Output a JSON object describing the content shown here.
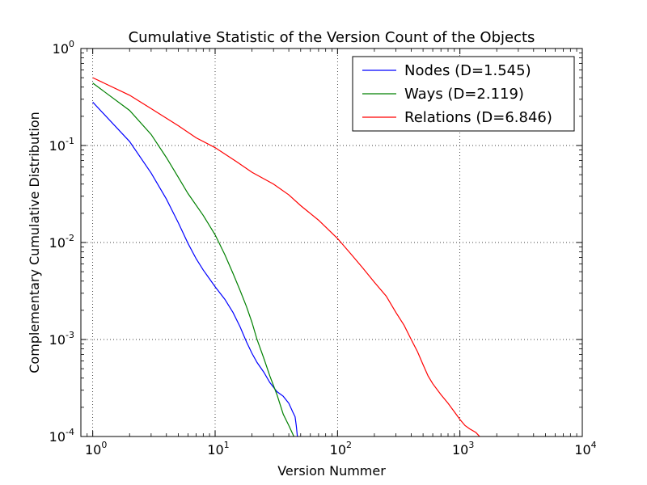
{
  "chart_data": {
    "type": "line",
    "title": "Cumulative Statistic of the Version Count of the Objects",
    "xlabel": "Version Nummer",
    "ylabel": "Complementary Cumulative Distribution",
    "xscale": "log",
    "yscale": "log",
    "xlim": [
      0.8,
      10000
    ],
    "ylim": [
      0.0001,
      1
    ],
    "grid": true,
    "legend_position": "top-right",
    "x_ticks": [
      {
        "value": 1,
        "base": "10",
        "exp": "0"
      },
      {
        "value": 10,
        "base": "10",
        "exp": "1"
      },
      {
        "value": 100,
        "base": "10",
        "exp": "2"
      },
      {
        "value": 1000,
        "base": "10",
        "exp": "3"
      },
      {
        "value": 10000,
        "base": "10",
        "exp": "4"
      }
    ],
    "y_ticks": [
      {
        "value": 1,
        "base": "10",
        "exp": "0"
      },
      {
        "value": 0.1,
        "base": "10",
        "exp": "-1"
      },
      {
        "value": 0.01,
        "base": "10",
        "exp": "-2"
      },
      {
        "value": 0.001,
        "base": "10",
        "exp": "-3"
      },
      {
        "value": 0.0001,
        "base": "10",
        "exp": "-4"
      }
    ],
    "series": [
      {
        "name": "Nodes (D=1.545)",
        "color": "#0000ff",
        "points": [
          [
            1,
            0.28
          ],
          [
            2,
            0.11
          ],
          [
            3,
            0.052
          ],
          [
            4,
            0.028
          ],
          [
            5,
            0.016
          ],
          [
            6,
            0.0098
          ],
          [
            7,
            0.0068
          ],
          [
            8,
            0.0052
          ],
          [
            10,
            0.0035
          ],
          [
            12,
            0.0026
          ],
          [
            14,
            0.0019
          ],
          [
            16,
            0.00135
          ],
          [
            18,
            0.00095
          ],
          [
            20,
            0.00072
          ],
          [
            22,
            0.00058
          ],
          [
            25,
            0.00046
          ],
          [
            28,
            0.00036
          ],
          [
            32,
            0.00029
          ],
          [
            36,
            0.00026
          ],
          [
            40,
            0.00022
          ],
          [
            43,
            0.00018
          ],
          [
            45,
            0.00016
          ],
          [
            46,
            0.00013
          ],
          [
            47,
            0.0001
          ]
        ]
      },
      {
        "name": "Ways (D=2.119)",
        "color": "#008000",
        "points": [
          [
            1,
            0.44
          ],
          [
            2,
            0.23
          ],
          [
            3,
            0.13
          ],
          [
            4,
            0.075
          ],
          [
            5,
            0.047
          ],
          [
            6,
            0.032
          ],
          [
            8,
            0.019
          ],
          [
            10,
            0.012
          ],
          [
            12,
            0.0075
          ],
          [
            14,
            0.0048
          ],
          [
            16,
            0.0032
          ],
          [
            18,
            0.0022
          ],
          [
            20,
            0.0015
          ],
          [
            22,
            0.001
          ],
          [
            25,
            0.00064
          ],
          [
            28,
            0.00042
          ],
          [
            32,
            0.00027
          ],
          [
            36,
            0.00017
          ],
          [
            40,
            0.00013
          ],
          [
            44,
            0.0001
          ]
        ]
      },
      {
        "name": "Relations (D=6.846)",
        "color": "#ff0000",
        "points": [
          [
            1,
            0.5
          ],
          [
            2,
            0.33
          ],
          [
            3,
            0.24
          ],
          [
            5,
            0.16
          ],
          [
            7,
            0.12
          ],
          [
            10,
            0.095
          ],
          [
            15,
            0.068
          ],
          [
            20,
            0.053
          ],
          [
            30,
            0.04
          ],
          [
            40,
            0.031
          ],
          [
            50,
            0.024
          ],
          [
            70,
            0.017
          ],
          [
            100,
            0.011
          ],
          [
            130,
            0.0075
          ],
          [
            160,
            0.0055
          ],
          [
            200,
            0.0039
          ],
          [
            250,
            0.0028
          ],
          [
            300,
            0.0019
          ],
          [
            350,
            0.0014
          ],
          [
            400,
            0.001
          ],
          [
            450,
            0.00075
          ],
          [
            500,
            0.00055
          ],
          [
            550,
            0.00042
          ],
          [
            600,
            0.00035
          ],
          [
            700,
            0.00027
          ],
          [
            800,
            0.00022
          ],
          [
            900,
            0.00018
          ],
          [
            1000,
            0.00015
          ],
          [
            1100,
            0.00013
          ],
          [
            1200,
            0.00012
          ],
          [
            1350,
            0.00011
          ],
          [
            1450,
            0.0001
          ]
        ]
      }
    ]
  }
}
